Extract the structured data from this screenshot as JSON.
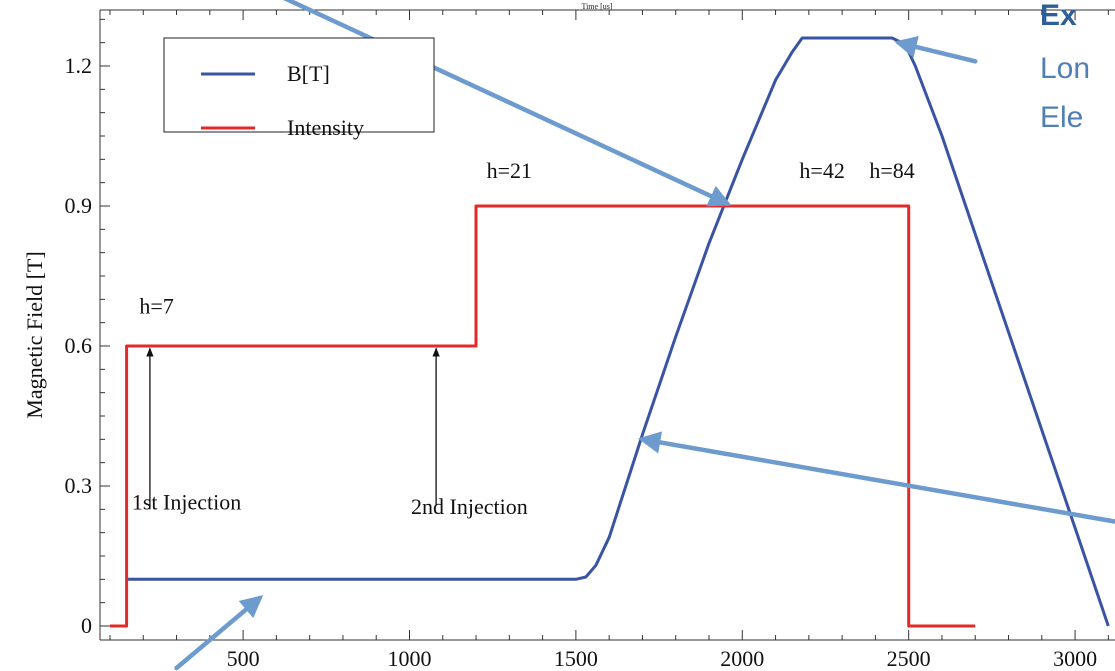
{
  "chart_data": {
    "type": "line",
    "title": "",
    "top_label": "Time [us]",
    "xlabel": "",
    "ylabel": "Magnetic Field [T]",
    "xlim": [
      70,
      3120
    ],
    "ylim": [
      -0.03,
      1.32
    ],
    "x_ticks": [
      500,
      1000,
      1500,
      2000,
      2500,
      3000
    ],
    "y_ticks": [
      0,
      0.3,
      0.6,
      0.9,
      1.2
    ],
    "y_tick_labels": [
      "0",
      "0.3",
      "0.6",
      "0.9",
      "1.2"
    ],
    "grid": false,
    "legend_position": "top-left",
    "series": [
      {
        "name": "B[T]",
        "color": "#3a54a4",
        "x": [
          150,
          500,
          1000,
          1500,
          1530,
          1560,
          1600,
          1700,
          1800,
          1900,
          2000,
          2100,
          2150,
          2180,
          2200,
          2300,
          2450,
          2480,
          2500,
          2520,
          2600,
          2700,
          2800,
          2900,
          3000,
          3100
        ],
        "y": [
          0.1,
          0.1,
          0.1,
          0.1,
          0.105,
          0.13,
          0.19,
          0.41,
          0.62,
          0.82,
          1.0,
          1.17,
          1.23,
          1.26,
          1.26,
          1.26,
          1.26,
          1.25,
          1.23,
          1.2,
          1.05,
          0.84,
          0.63,
          0.42,
          0.21,
          0.0
        ]
      },
      {
        "name": "Intensity",
        "color": "#e32a2a",
        "x": [
          100,
          150,
          150,
          1200,
          1200,
          2500,
          2500,
          2700
        ],
        "y": [
          0,
          0,
          0.6,
          0.6,
          0.9,
          0.9,
          0,
          0
        ]
      }
    ],
    "annotations": [
      {
        "text": "h=7",
        "x": 240,
        "y": 0.67
      },
      {
        "text": "h=21",
        "x": 1300,
        "y": 0.96
      },
      {
        "text": "h=42",
        "x": 2240,
        "y": 0.96
      },
      {
        "text": "h=84",
        "x": 2450,
        "y": 0.96
      },
      {
        "text": "1st Injection",
        "x": 330,
        "y": 0.25
      },
      {
        "text": "2nd Injection",
        "x": 1180,
        "y": 0.24
      }
    ],
    "injection_arrows": [
      {
        "x": 220,
        "from_y": 0.25,
        "to_y": 0.595
      },
      {
        "x": 1080,
        "from_y": 0.26,
        "to_y": 0.595
      }
    ],
    "pointer_arrows": [
      {
        "from": [
          580,
          1.36
        ],
        "to": [
          1955,
          0.905
        ]
      },
      {
        "from": [
          2700,
          1.21
        ],
        "to": [
          2470,
          1.25
        ]
      },
      {
        "from": [
          3150,
          0.22
        ],
        "to": [
          1700,
          0.4
        ]
      },
      {
        "from": [
          300,
          -0.09
        ],
        "to": [
          550,
          0.06
        ]
      }
    ]
  },
  "side_text": {
    "line1": "Ex",
    "line2": "Lon",
    "line3": "Ele"
  },
  "colors": {
    "arrow": "#6d9bcd",
    "axis": "#333333"
  }
}
